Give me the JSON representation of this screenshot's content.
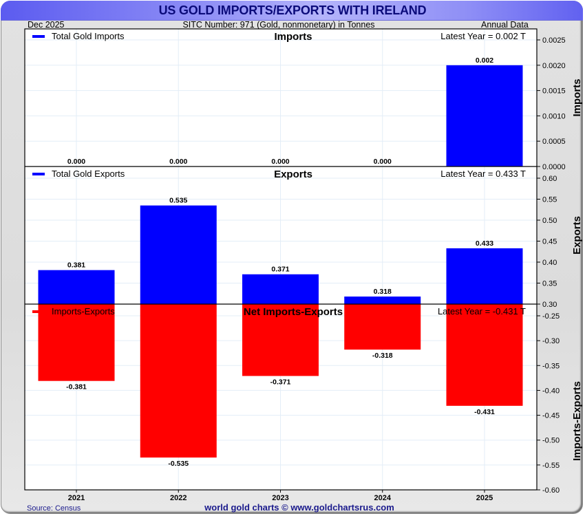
{
  "header": {
    "title": "US GOLD IMPORTS/EXPORTS WITH IRELAND",
    "date": "Dec  2025",
    "subtitle": "SITC Number: 971 (Gold, nonmonetary) in Tonnes",
    "frequency": "Annual Data"
  },
  "footer": {
    "source": "Source: Census",
    "credit": "world gold charts © www.goldchartsrus.com"
  },
  "colors": {
    "imports": "#0000ff",
    "exports": "#0000ff",
    "net": "#ff0000",
    "title_text": "#0b0b7a",
    "footer_text": "#1a1a8c",
    "gridline": "#e3edf7"
  },
  "chart_data": [
    {
      "type": "bar",
      "title": "Imports",
      "legend": "Total Gold Imports",
      "latest_label": "Latest Year = 0.002 T",
      "ylabel": "Imports",
      "categories": [
        "2021",
        "2022",
        "2023",
        "2024",
        "2025"
      ],
      "values": [
        0.0,
        0.0,
        0.0,
        0.0,
        0.002
      ],
      "value_labels": [
        "0.000",
        "0.000",
        "0.000",
        "0.000",
        "0.002"
      ],
      "ylim": [
        0,
        0.0025
      ],
      "yticks": [
        "0.0000",
        "0.0005",
        "0.0010",
        "0.0015",
        "0.0020",
        "0.0025"
      ],
      "ytick_values": [
        0,
        0.0005,
        0.001,
        0.0015,
        0.002,
        0.0025
      ],
      "grid": true,
      "legend_position": "top-left"
    },
    {
      "type": "bar",
      "title": "Exports",
      "legend": "Total Gold Exports",
      "latest_label": "Latest Year = 0.433 T",
      "ylabel": "Exports",
      "categories": [
        "2021",
        "2022",
        "2023",
        "2024",
        "2025"
      ],
      "values": [
        0.381,
        0.535,
        0.371,
        0.318,
        0.433
      ],
      "value_labels": [
        "0.381",
        "0.535",
        "0.371",
        "0.318",
        "0.433"
      ],
      "ylim": [
        0.3,
        0.6
      ],
      "yticks": [
        "0.30",
        "0.35",
        "0.40",
        "0.45",
        "0.50",
        "0.55",
        "0.60"
      ],
      "ytick_values": [
        0.3,
        0.35,
        0.4,
        0.45,
        0.5,
        0.55,
        0.6
      ],
      "grid": true,
      "legend_position": "top-left"
    },
    {
      "type": "bar",
      "title": "Net Imports-Exports",
      "legend": "Imports-Exports",
      "latest_label": "Latest Year = -0.431 T",
      "ylabel": "Imports-Exports",
      "xlabel": "",
      "categories": [
        "2021",
        "2022",
        "2023",
        "2024",
        "2025"
      ],
      "values": [
        -0.381,
        -0.535,
        -0.371,
        -0.318,
        -0.431
      ],
      "value_labels": [
        "-0.381",
        "-0.535",
        "-0.371",
        "-0.318",
        "-0.431"
      ],
      "ylim": [
        -0.6,
        -0.226
      ],
      "yticks": [
        "-0.25",
        "-0.30",
        "-0.35",
        "-0.40",
        "-0.45",
        "-0.50",
        "-0.55",
        "-0.60"
      ],
      "ytick_values": [
        -0.25,
        -0.3,
        -0.35,
        -0.4,
        -0.45,
        -0.5,
        -0.55,
        -0.6
      ],
      "grid": true,
      "legend_position": "top-left"
    }
  ]
}
